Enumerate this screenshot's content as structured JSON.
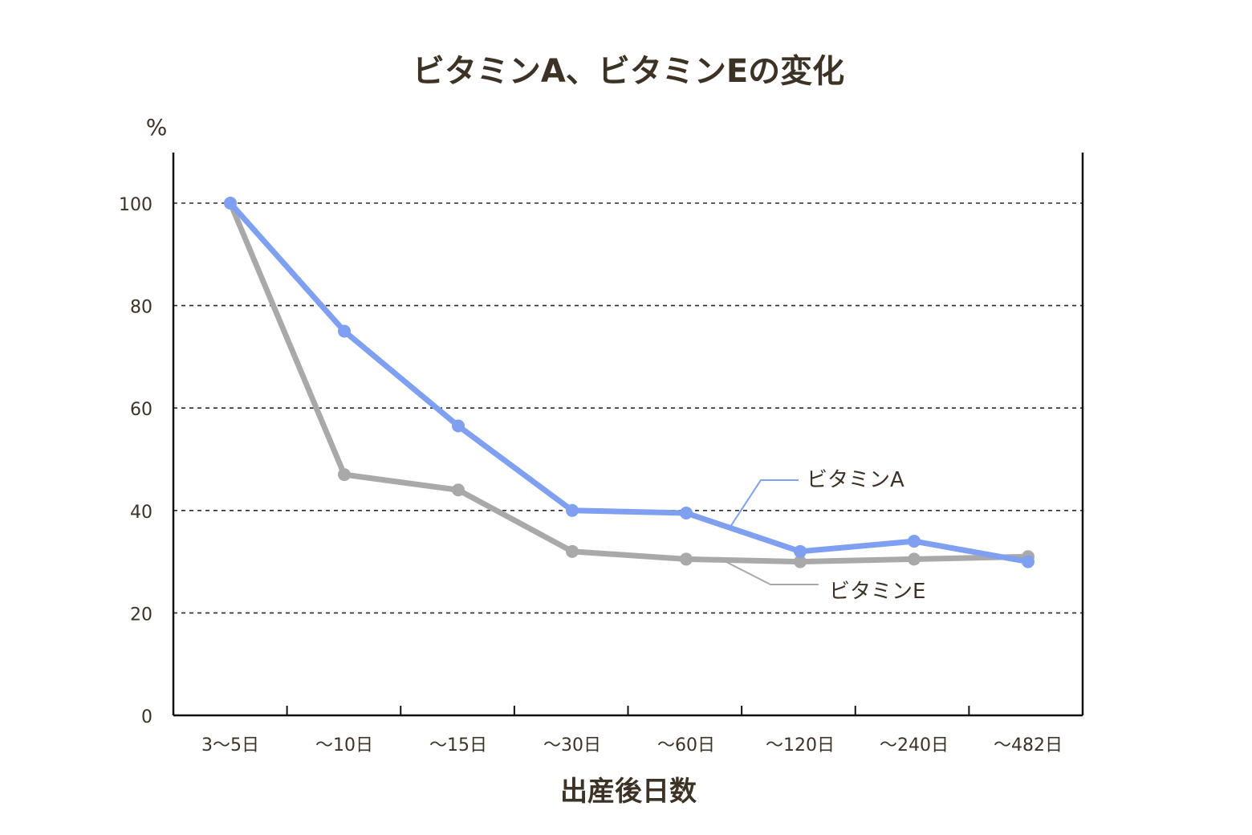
{
  "chart_data": {
    "type": "line",
    "title": "ビタミンA、ビタミンEの変化",
    "ylabel": "%",
    "xlabel": "出産後日数",
    "ylim": [
      0,
      110
    ],
    "yticks": [
      0,
      20,
      40,
      60,
      80,
      100
    ],
    "grid": "horizontal-dashed",
    "categories": [
      "3〜5日",
      "〜10日",
      "〜15日",
      "〜30日",
      "〜60日",
      "〜120日",
      "〜240日",
      "〜482日"
    ],
    "series": [
      {
        "name": "ビタミンA",
        "color": "#7f9ff0",
        "values": [
          100,
          75,
          56.5,
          40,
          39.5,
          32,
          34,
          30
        ]
      },
      {
        "name": "ビタミンE",
        "color": "#a9a9a9",
        "values": [
          100,
          47,
          44,
          32,
          30.5,
          30,
          30.5,
          31
        ]
      }
    ]
  }
}
